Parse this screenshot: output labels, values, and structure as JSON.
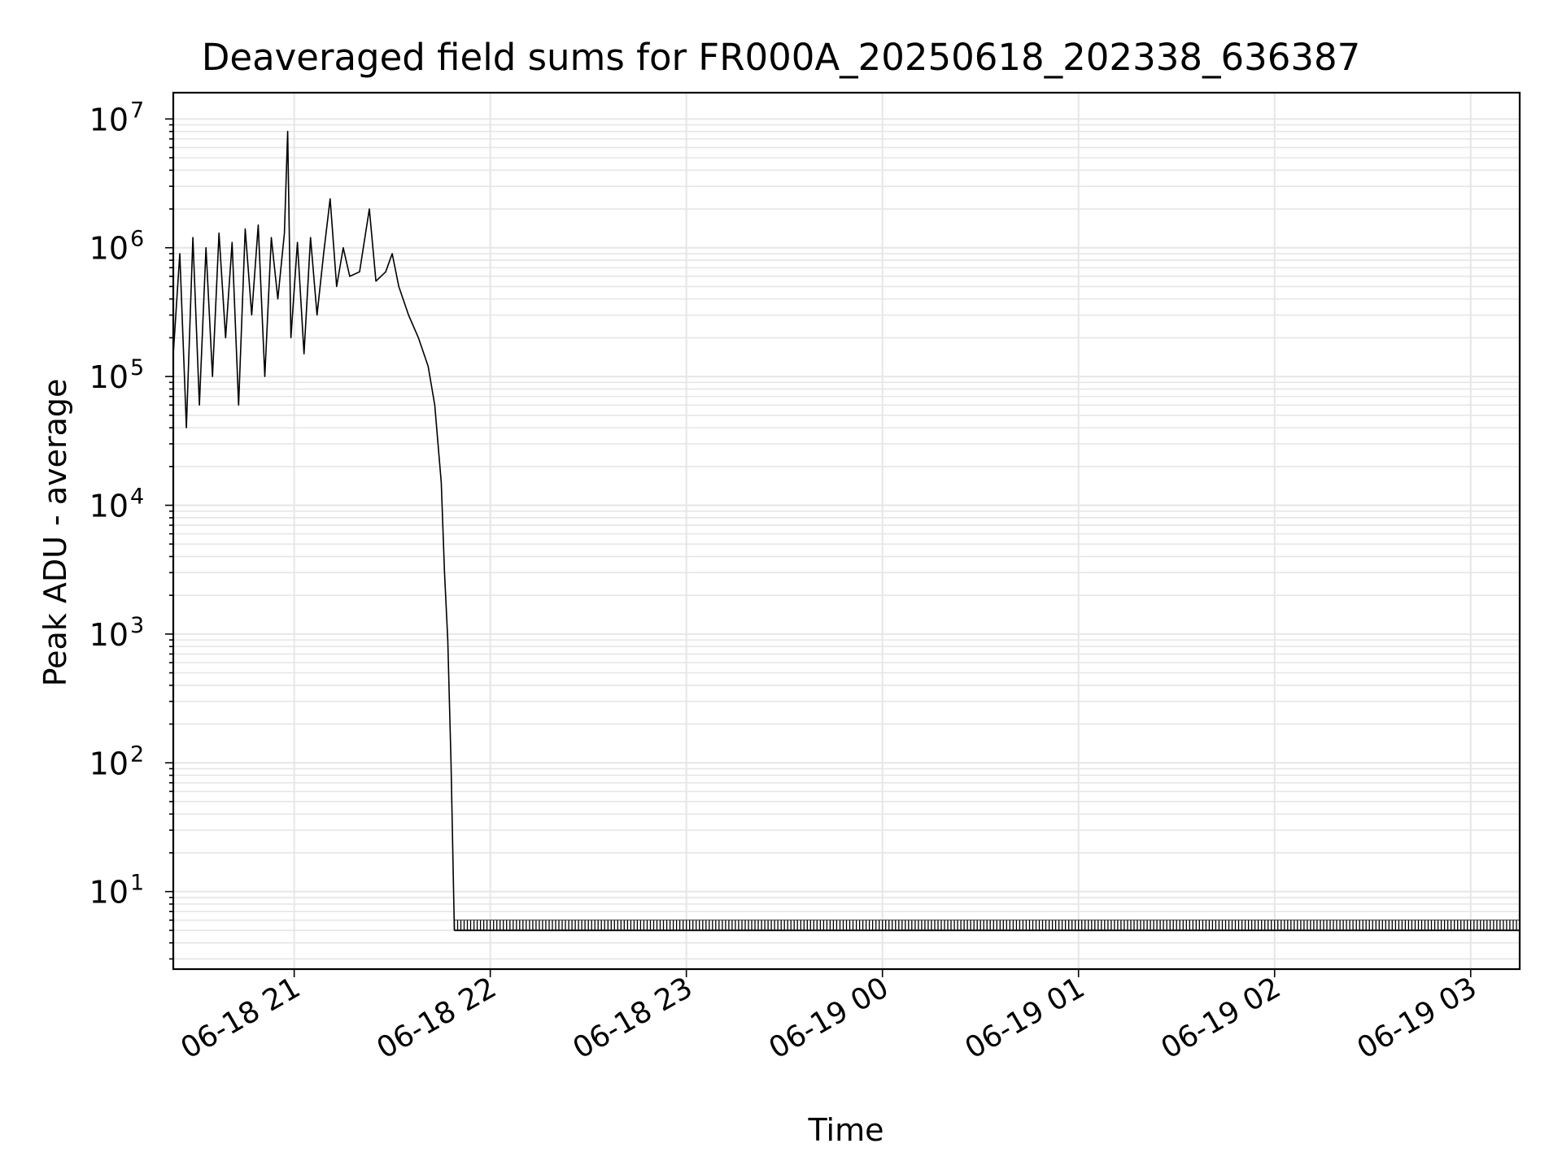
{
  "chart_data": {
    "type": "line",
    "title": "Deaveraged field sums for FR000A_20250618_202338_636387",
    "xlabel": "Time",
    "ylabel": "Peak ADU - average",
    "yscale": "log",
    "ylim": [
      2.5,
      16000000
    ],
    "xlim": [
      "06-18 20:23",
      "06-19 03:15"
    ],
    "grid": true,
    "x_tick_labels": [
      "06-18 21",
      "06-18 22",
      "06-18 23",
      "06-19 00",
      "06-19 01",
      "06-19 02",
      "06-19 03"
    ],
    "y_tick_labels": [
      {
        "base": "10",
        "exp": "1"
      },
      {
        "base": "10",
        "exp": "2"
      },
      {
        "base": "10",
        "exp": "3"
      },
      {
        "base": "10",
        "exp": "4"
      },
      {
        "base": "10",
        "exp": "5"
      },
      {
        "base": "10",
        "exp": "6"
      },
      {
        "base": "10",
        "exp": "7"
      }
    ],
    "series": [
      {
        "color": "#000000",
        "points": [
          [
            "06-18 20:23",
            150000
          ],
          [
            "06-18 20:25",
            900000
          ],
          [
            "06-18 20:27",
            40000
          ],
          [
            "06-18 20:29",
            1200000
          ],
          [
            "06-18 20:31",
            60000
          ],
          [
            "06-18 20:33",
            1000000
          ],
          [
            "06-18 20:35",
            100000
          ],
          [
            "06-18 20:37",
            1300000
          ],
          [
            "06-18 20:39",
            200000
          ],
          [
            "06-18 20:41",
            1100000
          ],
          [
            "06-18 20:43",
            60000
          ],
          [
            "06-18 20:45",
            1400000
          ],
          [
            "06-18 20:47",
            300000
          ],
          [
            "06-18 20:49",
            1500000
          ],
          [
            "06-18 20:51",
            100000
          ],
          [
            "06-18 20:53",
            1200000
          ],
          [
            "06-18 20:55",
            400000
          ],
          [
            "06-18 20:57",
            1300000
          ],
          [
            "06-18 20:58",
            8000000
          ],
          [
            "06-18 20:59",
            200000
          ],
          [
            "06-18 21:01",
            1100000
          ],
          [
            "06-18 21:03",
            150000
          ],
          [
            "06-18 21:05",
            1200000
          ],
          [
            "06-18 21:07",
            300000
          ],
          [
            "06-18 21:09",
            900000
          ],
          [
            "06-18 21:11",
            2400000
          ],
          [
            "06-18 21:13",
            500000
          ],
          [
            "06-18 21:15",
            1000000
          ],
          [
            "06-18 21:17",
            600000
          ],
          [
            "06-18 21:20",
            650000
          ],
          [
            "06-18 21:23",
            2000000
          ],
          [
            "06-18 21:25",
            550000
          ],
          [
            "06-18 21:28",
            650000
          ],
          [
            "06-18 21:30",
            900000
          ],
          [
            "06-18 21:32",
            500000
          ],
          [
            "06-18 21:35",
            300000
          ],
          [
            "06-18 21:38",
            200000
          ],
          [
            "06-18 21:41",
            120000
          ],
          [
            "06-18 21:43",
            60000
          ],
          [
            "06-18 21:45",
            15000
          ],
          [
            "06-18 21:46",
            3000
          ],
          [
            "06-18 21:47",
            900
          ],
          [
            "06-18 21:48",
            100
          ],
          [
            "06-18 21:49",
            5
          ]
        ]
      }
    ],
    "baseline_value": 5,
    "baseline_spike_value": 6,
    "baseline_range": [
      "06-18 21:49",
      "06-19 03:15"
    ]
  }
}
